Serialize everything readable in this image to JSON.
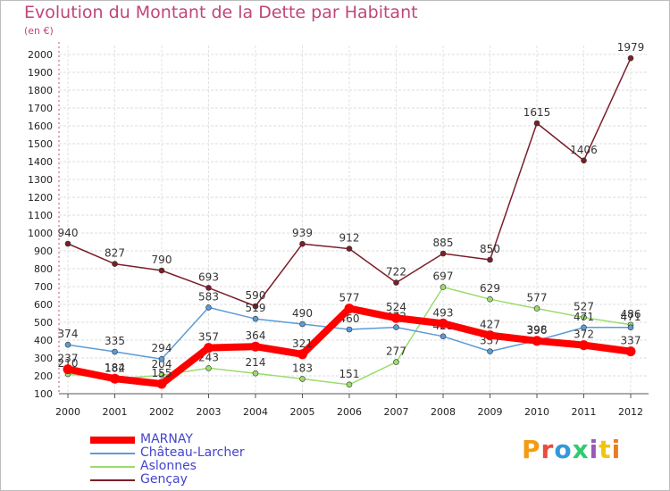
{
  "chart_data": {
    "type": "line",
    "title": "Evolution du Montant de la Dette par Habitant",
    "subtitle": "(en €)",
    "x": [
      "2000",
      "2001",
      "2002",
      "2003",
      "2004",
      "2005",
      "2006",
      "2007",
      "2008",
      "2009",
      "2010",
      "2011",
      "2012"
    ],
    "ylim": [
      100,
      2000
    ],
    "yticks": [
      100,
      200,
      300,
      400,
      500,
      600,
      700,
      800,
      900,
      1000,
      1100,
      1200,
      1300,
      1400,
      1500,
      1600,
      1700,
      1800,
      1900,
      2000
    ],
    "grid": true,
    "legend_position": "bottom-left",
    "series": [
      {
        "name": "Gençay",
        "color": "#7a1f2a",
        "values": [
          940,
          827,
          790,
          693,
          590,
          939,
          912,
          722,
          885,
          850,
          1615,
          1406,
          1979
        ]
      },
      {
        "name": "Aslonnes",
        "color": "#9bdc6e",
        "values": [
          210,
          182,
          204,
          243,
          214,
          183,
          151,
          277,
          697,
          629,
          577,
          527,
          486
        ]
      },
      {
        "name": "Château-Larcher",
        "color": "#5b9bd5",
        "values": [
          374,
          335,
          294,
          583,
          519,
          490,
          460,
          472,
          421,
          337,
          398,
          471,
          471
        ]
      },
      {
        "name": "MARNAY",
        "color": "#ff0000",
        "values": [
          237,
          184,
          155,
          357,
          364,
          321,
          577,
          524,
          493,
          427,
          396,
          372,
          337
        ]
      }
    ]
  },
  "logo_text": "Proxiti"
}
